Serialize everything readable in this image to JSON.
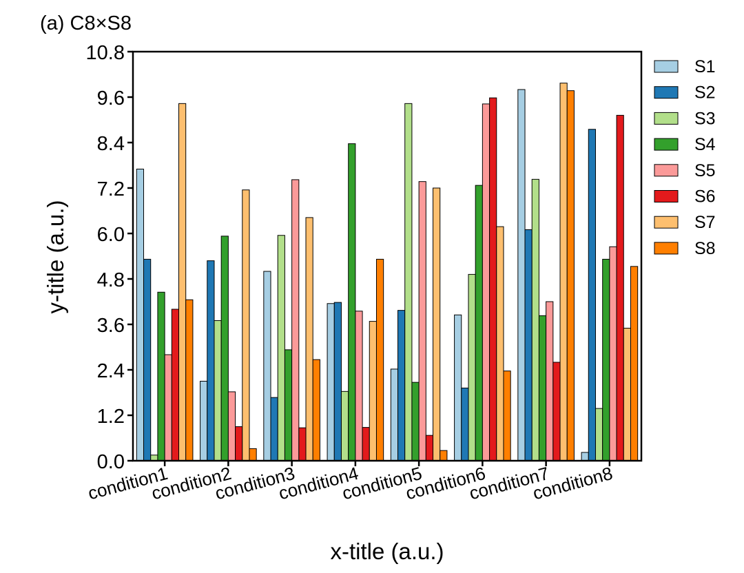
{
  "chart_data": {
    "type": "bar",
    "title": "(a) C8×S8",
    "xlabel": "x-title (a.u.)",
    "ylabel": "y-title (a.u.)",
    "ylim": [
      0,
      10.8
    ],
    "yticks": [
      "0.0",
      "1.2",
      "2.4",
      "3.6",
      "4.8",
      "6.0",
      "7.2",
      "8.4",
      "9.6",
      "10.8"
    ],
    "categories": [
      "condition1",
      "condition2",
      "condition3",
      "condition4",
      "condition5",
      "condition6",
      "condition7",
      "condition8"
    ],
    "grid": false,
    "legend_position": "right",
    "series": [
      {
        "name": "S1",
        "color": "#a6cee3",
        "values": [
          7.7,
          2.1,
          5.0,
          4.15,
          2.42,
          3.85,
          9.8,
          0.22
        ]
      },
      {
        "name": "S2",
        "color": "#1f78b4",
        "values": [
          5.32,
          5.28,
          1.67,
          4.18,
          3.97,
          1.92,
          6.1,
          8.75
        ]
      },
      {
        "name": "S3",
        "color": "#b2df8a",
        "values": [
          0.15,
          3.7,
          5.95,
          1.83,
          9.43,
          4.92,
          7.43,
          1.38
        ]
      },
      {
        "name": "S4",
        "color": "#33a02c",
        "values": [
          4.45,
          5.93,
          2.93,
          8.37,
          2.07,
          7.27,
          3.83,
          5.32
        ]
      },
      {
        "name": "S5",
        "color": "#fb9a99",
        "values": [
          2.8,
          1.82,
          7.42,
          3.95,
          7.37,
          9.42,
          4.2,
          5.65
        ]
      },
      {
        "name": "S6",
        "color": "#e31a1c",
        "values": [
          4.0,
          0.9,
          0.87,
          0.88,
          0.67,
          9.58,
          2.6,
          9.12
        ]
      },
      {
        "name": "S7",
        "color": "#fdbf6f",
        "values": [
          9.43,
          7.15,
          6.42,
          3.68,
          7.2,
          6.18,
          9.97,
          3.5
        ]
      },
      {
        "name": "S8",
        "color": "#ff7f00",
        "values": [
          4.25,
          0.32,
          2.67,
          5.32,
          0.27,
          2.37,
          9.77,
          5.13
        ]
      }
    ]
  }
}
